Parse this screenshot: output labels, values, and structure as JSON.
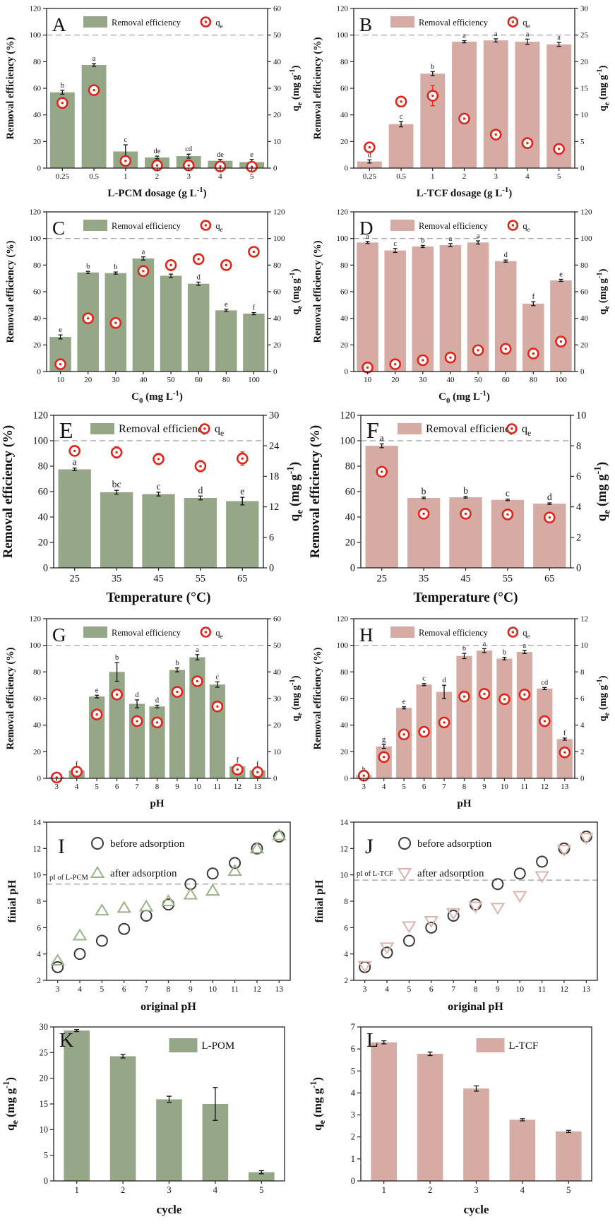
{
  "figure": {
    "description": "12-panel adsorption study figure, panels A-L"
  },
  "colors": {
    "green_bar": "#95a787",
    "pink_bar": "#d5aba3",
    "marker_red": "#e2231a",
    "ref_dash_gray": "#9a9a9a",
    "axis_black": "#222222",
    "scatter_circle": "#3a3a3a",
    "triangle_green": "#9ab28a",
    "triangle_pink": "#dcb3ab"
  },
  "chart_data": [
    {
      "id": "A",
      "type": "dual_bar",
      "bar_color": "#95a787",
      "x": {
        "label": "L-PCM dosage (g L^{-1})",
        "categories": [
          "0.25",
          "0.5",
          "1",
          "2",
          "3",
          "4",
          "5"
        ]
      },
      "y_left": {
        "label": "Removal efficiency (%)",
        "min": 0,
        "max": 120,
        "step": 20
      },
      "y_right": {
        "label": "q_{e} (mg g^{-1})",
        "min": 0,
        "max": 60,
        "step": 10
      },
      "ref_line": 100,
      "legend": {
        "bar": "Removal efficiency",
        "marker": "q_{e}"
      },
      "bars": [
        57,
        77.5,
        12.5,
        8,
        9,
        5.5,
        4.5
      ],
      "bar_err": [
        1.5,
        1,
        5,
        1,
        1.5,
        1,
        2
      ],
      "letters": [
        "b",
        "a",
        "c",
        "de",
        "cd",
        "de",
        "e"
      ],
      "qe": [
        24.5,
        29.3,
        2.7,
        1.0,
        1.0,
        0.6,
        0.5
      ],
      "qe_err": [
        2,
        1,
        1.5,
        0.6,
        0.6,
        0.5,
        0.5
      ]
    },
    {
      "id": "B",
      "type": "dual_bar",
      "bar_color": "#d5aba3",
      "x": {
        "label": "L-TCF dosage (g L^{-1})",
        "categories": [
          "0.25",
          "0.5",
          "1",
          "2",
          "3",
          "4",
          "5"
        ]
      },
      "y_left": {
        "label": "Removal efficiency (%)",
        "min": 0,
        "max": 120,
        "step": 20
      },
      "y_right": {
        "label": "q_{e} (mg g^{-1})",
        "min": 0,
        "max": 30,
        "step": 5
      },
      "ref_line": 100,
      "legend": {
        "bar": "Removal efficiency",
        "marker": "q_{e}"
      },
      "bars": [
        5,
        33,
        71,
        95,
        96,
        95,
        93
      ],
      "bar_err": [
        1.2,
        2,
        1.5,
        0.8,
        1.2,
        2,
        1.5
      ],
      "letters": [
        "d",
        "c",
        "b",
        "a",
        "a",
        "a",
        "a"
      ],
      "qe": [
        3.9,
        12.5,
        13.6,
        9.3,
        6.3,
        4.7,
        3.6
      ],
      "qe_err": [
        0.8,
        0.5,
        1.9,
        0.4,
        0.4,
        0.5,
        0.4
      ]
    },
    {
      "id": "C",
      "type": "dual_bar",
      "bar_color": "#95a787",
      "x": {
        "label": "C_{0} (mg L^{-1})",
        "categories": [
          "10",
          "20",
          "30",
          "40",
          "50",
          "60",
          "80",
          "100"
        ]
      },
      "y_left": {
        "label": "Removal efficiency (%)",
        "min": 0,
        "max": 120,
        "step": 20
      },
      "y_right": {
        "label": "q_{e} (mg g^{-1})",
        "min": 0,
        "max": 120,
        "step": 20
      },
      "ref_line": 100,
      "legend": {
        "bar": "Removal efficiency",
        "marker": "q_{e}"
      },
      "bars": [
        26,
        74.5,
        74,
        85,
        72,
        66,
        46,
        43.5
      ],
      "bar_err": [
        1.5,
        0.8,
        0.8,
        1.2,
        1.2,
        1.2,
        0.8,
        0.8
      ],
      "letters": [
        "e",
        "b",
        "b",
        "a",
        "c",
        "d",
        "e",
        "f"
      ],
      "qe": [
        5.5,
        40,
        36.5,
        75.5,
        80,
        84.5,
        80,
        90
      ],
      "qe_err": [
        1.5,
        2,
        2,
        3,
        3,
        3,
        3,
        3.5
      ]
    },
    {
      "id": "D",
      "type": "dual_bar",
      "bar_color": "#d5aba3",
      "x": {
        "label": "C_{0} (mg L^{-1})",
        "categories": [
          "10",
          "20",
          "30",
          "40",
          "50",
          "60",
          "80",
          "100"
        ]
      },
      "y_left": {
        "label": "Removal efficiency (%)",
        "min": 0,
        "max": 120,
        "step": 20
      },
      "y_right": {
        "label": "q_{e} (mg g^{-1})",
        "min": 0,
        "max": 120,
        "step": 20
      },
      "ref_line": 100,
      "legend": {
        "bar": "Removal efficiency",
        "marker": "q_{e}"
      },
      "bars": [
        97,
        91,
        94,
        95,
        97,
        83,
        51,
        68.5
      ],
      "bar_err": [
        0.8,
        1.5,
        0.8,
        1.2,
        1.2,
        0.8,
        1.5,
        0.8
      ],
      "letters": [
        "a",
        "c",
        "b",
        "a",
        "a",
        "d",
        "f",
        "e"
      ],
      "qe": [
        3,
        5.5,
        8.5,
        10.5,
        16,
        17,
        13.5,
        22.5
      ],
      "qe_err": [
        1.2,
        1.5,
        2,
        2.2,
        2.2,
        2.2,
        2.2,
        3
      ]
    },
    {
      "id": "E",
      "type": "dual_bar",
      "bar_color": "#95a787",
      "font_scale": 1.3,
      "x": {
        "label": "Temperature (°C)",
        "categories": [
          "25",
          "35",
          "45",
          "55",
          "65"
        ]
      },
      "y_left": {
        "label": "Removal efficiency (%)",
        "min": 0,
        "max": 120,
        "step": 20
      },
      "y_right": {
        "label": "q_{e} (mg g^{-1})",
        "min": 0,
        "max": 30,
        "step": 6
      },
      "ref_line": 100,
      "legend": {
        "bar": "Removal efficiency",
        "marker": "q_{e}"
      },
      "bars": [
        77.5,
        59.5,
        58,
        55,
        52.5
      ],
      "bar_err": [
        1,
        1.5,
        1.5,
        1.5,
        3
      ],
      "letters": [
        "a",
        "bc",
        "c",
        "d",
        "e"
      ],
      "qe": [
        23,
        22.7,
        21.4,
        20,
        21.5
      ],
      "qe_err": [
        0.9,
        1.1,
        1.1,
        1.1,
        1.3
      ]
    },
    {
      "id": "F",
      "type": "dual_bar",
      "bar_color": "#d5aba3",
      "font_scale": 1.3,
      "x": {
        "label": "Temperature (°C)",
        "categories": [
          "25",
          "35",
          "45",
          "55",
          "65"
        ]
      },
      "y_left": {
        "label": "Removal efficiency (%)",
        "min": 0,
        "max": 120,
        "step": 20
      },
      "y_right": {
        "label": "q_{e} (mg g^{-1})",
        "min": 0,
        "max": 10,
        "step": 2
      },
      "ref_line": 100,
      "legend": {
        "bar": "Removal efficiency",
        "marker": "q_{e}"
      },
      "bars": [
        96,
        55,
        55.5,
        53.5,
        50.5
      ],
      "bar_err": [
        1.5,
        0.6,
        0.6,
        0.6,
        0.6
      ],
      "letters": [
        "a",
        "b",
        "b",
        "c",
        "d"
      ],
      "qe": [
        6.3,
        3.55,
        3.55,
        3.5,
        3.3
      ],
      "qe_err": [
        0.2,
        0.25,
        0.25,
        0.3,
        0.3
      ]
    },
    {
      "id": "G",
      "type": "dual_bar",
      "bar_color": "#95a787",
      "x": {
        "label": "pH",
        "categories": [
          "3",
          "4",
          "5",
          "6",
          "7",
          "8",
          "9",
          "10",
          "11",
          "12",
          "13"
        ]
      },
      "y_left": {
        "label": "Removal efficiency (%)",
        "min": 0,
        "max": 120,
        "step": 20
      },
      "y_right": {
        "label": "q_{e} (mg g^{-1})",
        "min": 0,
        "max": 60,
        "step": 10
      },
      "ref_line": 100,
      "legend": {
        "bar": "Removal efficiency",
        "marker": "q_{e}"
      },
      "bars": [
        1,
        6,
        61.5,
        80,
        56,
        54,
        81.5,
        91,
        70.5,
        9,
        6
      ],
      "bar_err": [
        0.4,
        0.8,
        1,
        7,
        3,
        1,
        1.5,
        2,
        2,
        0.8,
        0.8
      ],
      "letters": [
        "",
        "f",
        "e",
        "b",
        "d",
        "d",
        "b",
        "a",
        "c",
        "f",
        "f"
      ],
      "qe": [
        0.3,
        2.5,
        24,
        31.5,
        21.5,
        21,
        32.5,
        36.5,
        27,
        3.3,
        2.3
      ],
      "qe_err": [
        0.3,
        0.5,
        1.5,
        1.8,
        1.5,
        1.5,
        1.8,
        1.8,
        1.8,
        0.8,
        0.7
      ]
    },
    {
      "id": "H",
      "type": "dual_bar",
      "bar_color": "#d5aba3",
      "x": {
        "label": "pH",
        "categories": [
          "3",
          "4",
          "5",
          "6",
          "7",
          "8",
          "9",
          "10",
          "11",
          "12",
          "13"
        ]
      },
      "y_left": {
        "label": "Removal efficiency (%)",
        "min": 0,
        "max": 120,
        "step": 20
      },
      "y_right": {
        "label": "q_{e} (mg g^{-1})",
        "min": 0,
        "max": 12,
        "step": 2
      },
      "ref_line": 100,
      "legend": {
        "bar": "Removal efficiency",
        "marker": "q_{e}"
      },
      "bars": [
        2.5,
        24,
        53,
        70.5,
        65,
        92,
        96,
        90,
        95,
        67.5,
        29.5
      ],
      "bar_err": [
        0.4,
        1.5,
        0.8,
        0.8,
        5,
        2,
        1.5,
        1,
        1.2,
        0.8,
        0.8
      ],
      "letters": [
        "h",
        "g",
        "e",
        "c",
        "d",
        "b",
        "a",
        "b",
        "a",
        "cd",
        "f"
      ],
      "qe": [
        0.2,
        1.6,
        3.3,
        3.5,
        4.2,
        6.15,
        6.35,
        5.95,
        6.3,
        4.3,
        1.95
      ],
      "qe_err": [
        0.1,
        0.25,
        0.3,
        0.3,
        0.35,
        0.3,
        0.3,
        0.3,
        0.3,
        0.4,
        0.25
      ]
    },
    {
      "id": "I",
      "type": "scatter",
      "x": {
        "label": "original pH",
        "min": 3,
        "max": 13,
        "ticks": [
          3,
          4,
          5,
          6,
          7,
          8,
          9,
          10,
          11,
          12,
          13
        ]
      },
      "y": {
        "label": "finial pH",
        "min": 2,
        "max": 14,
        "step": 2
      },
      "ref_line": {
        "value": 9.3,
        "label": "pI of L-PCM"
      },
      "series": [
        {
          "name": "before adsorption",
          "marker": "circle",
          "color": "#3a3a3a",
          "x": [
            3,
            4,
            5,
            6,
            7,
            8,
            9,
            10,
            11,
            12,
            13
          ],
          "y": [
            3,
            4,
            5,
            5.9,
            6.9,
            7.75,
            9.3,
            10.1,
            10.9,
            12,
            12.9
          ]
        },
        {
          "name": "after adsorption",
          "marker": "triangle-up",
          "color": "#9ab28a",
          "x": [
            3,
            4,
            5,
            6,
            7,
            8,
            9,
            10,
            11,
            12,
            13
          ],
          "y": [
            3.5,
            5.4,
            7.3,
            7.5,
            7.6,
            8.0,
            8.5,
            8.8,
            10.3,
            12.0,
            13.0
          ]
        }
      ]
    },
    {
      "id": "J",
      "type": "scatter",
      "x": {
        "label": "original pH",
        "min": 3,
        "max": 13,
        "ticks": [
          3,
          4,
          5,
          6,
          7,
          8,
          9,
          10,
          11,
          12,
          13
        ]
      },
      "y": {
        "label": "finial pH",
        "min": 2,
        "max": 14,
        "step": 2
      },
      "ref_line": {
        "value": 9.6,
        "label": "pI of L-TCF"
      },
      "series": [
        {
          "name": "before adsorption",
          "marker": "circle",
          "color": "#3a3a3a",
          "x": [
            3,
            4,
            5,
            6,
            7,
            8,
            9,
            10,
            11,
            12,
            13
          ],
          "y": [
            3,
            4.1,
            5,
            6,
            6.9,
            7.75,
            9.3,
            10.1,
            11,
            12,
            12.9
          ]
        },
        {
          "name": "after adsorption",
          "marker": "triangle-down",
          "color": "#dcb3ab",
          "x": [
            3,
            4,
            5,
            6,
            7,
            8,
            9,
            10,
            11,
            12,
            13
          ],
          "y": [
            3.1,
            4.5,
            6.1,
            6.5,
            7.1,
            7.6,
            7.5,
            8.4,
            9.9,
            11.9,
            12.8
          ]
        }
      ]
    },
    {
      "id": "K",
      "type": "bar",
      "bar_color": "#95a787",
      "legend": "L-POM",
      "x": {
        "label": "cycle",
        "categories": [
          "1",
          "2",
          "3",
          "4",
          "5"
        ]
      },
      "y": {
        "label": "q_{e} (mg g^{-1})",
        "min": 0,
        "max": 30,
        "step": 5
      },
      "values": [
        29.3,
        24.3,
        15.9,
        15.0,
        1.7
      ],
      "err": [
        0.2,
        0.35,
        0.6,
        3.2,
        0.3
      ]
    },
    {
      "id": "L",
      "type": "bar",
      "bar_color": "#d5aba3",
      "legend": "L-TCF",
      "x": {
        "label": "cycle",
        "categories": [
          "1",
          "2",
          "3",
          "4",
          "5"
        ]
      },
      "y": {
        "label": "q_{e} (mg g^{-1})",
        "min": 0,
        "max": 7,
        "step": 1
      },
      "values": [
        6.3,
        5.78,
        4.2,
        2.78,
        2.25
      ],
      "err": [
        0.07,
        0.08,
        0.12,
        0.05,
        0.05
      ]
    }
  ]
}
